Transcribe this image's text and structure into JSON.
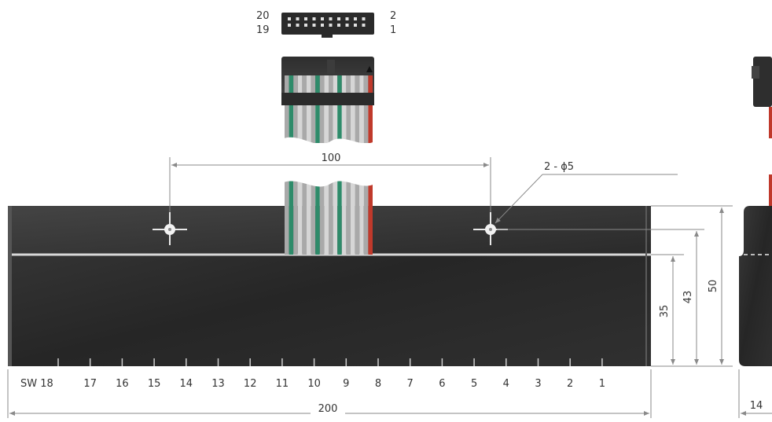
{
  "connector_pins": {
    "top_left": "20",
    "bottom_left": "19",
    "top_right": "2",
    "bottom_right": "1"
  },
  "dimensions": {
    "hole_spacing": "100",
    "holes": "2 - ϕ5",
    "overall_height": "50",
    "hole_height": "43",
    "lower_height": "35",
    "overall_width": "200",
    "side_depth": "14"
  },
  "switch_labels": [
    "SW 18",
    "17",
    "16",
    "15",
    "14",
    "13",
    "12",
    "11",
    "10",
    "9",
    "8",
    "7",
    "6",
    "5",
    "4",
    "3",
    "2",
    "1"
  ],
  "colors": {
    "body": "#2a2a2a",
    "ribbon_grey": "#a9a9a9",
    "ribbon_green": "#2e8b6a",
    "ribbon_red": "#c0392b",
    "dim_line": "#8a8a8a"
  }
}
